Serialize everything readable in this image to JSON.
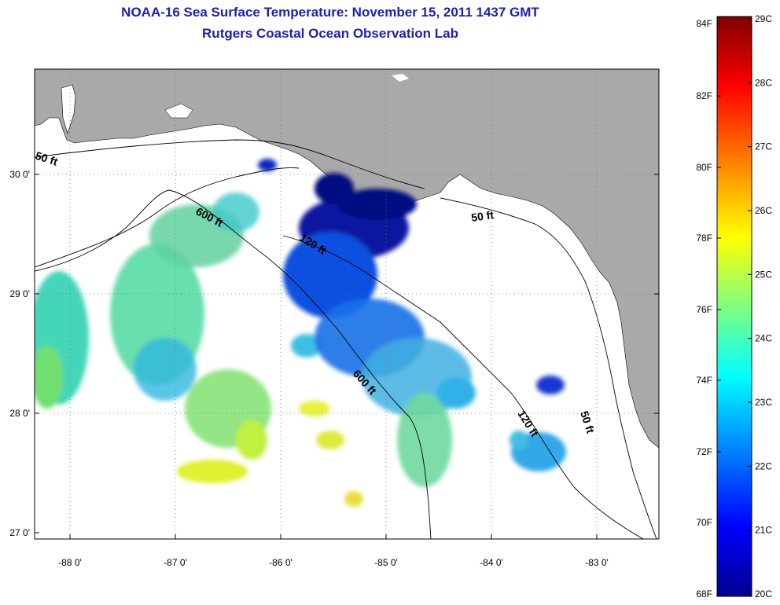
{
  "header": {
    "title": "NOAA-16 Sea Surface Temperature:  November 15, 2011 1437 GMT",
    "subtitle": "Rutgers Coastal Ocean Observation Lab"
  },
  "axes": {
    "lat_ticks": [
      "30 0'",
      "29 0'",
      "28 0'",
      "27 0'"
    ],
    "lon_ticks": [
      "-88 0'",
      "-87 0'",
      "-86 0'",
      "-85 0'",
      "-84 0'",
      "-83 0'"
    ]
  },
  "contours": {
    "labels": [
      "50 ft",
      "600 ft",
      "120 ft",
      "50 ft",
      "600 ft",
      "120 ft",
      "50 ft"
    ]
  },
  "colorbar": {
    "fahrenheit": [
      "84F",
      "82F",
      "80F",
      "78F",
      "76F",
      "74F",
      "72F",
      "70F",
      "68F"
    ],
    "celsius": [
      "29C",
      "28C",
      "27C",
      "26C",
      "25C",
      "24C",
      "23C",
      "22C",
      "21C",
      "20C"
    ],
    "colors": [
      "#00008f",
      "#0000ff",
      "#00ffff",
      "#ffff00",
      "#ff0000",
      "#800000"
    ]
  },
  "map_colors": {
    "land": "#a9a9a9",
    "ocean": "#ffffff"
  }
}
